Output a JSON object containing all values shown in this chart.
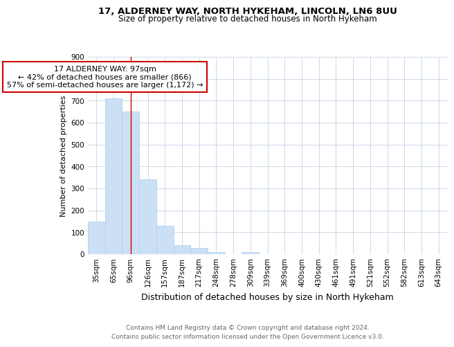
{
  "title": "17, ALDERNEY WAY, NORTH HYKEHAM, LINCOLN, LN6 8UU",
  "subtitle": "Size of property relative to detached houses in North Hykeham",
  "xlabel": "Distribution of detached houses by size in North Hykeham",
  "ylabel": "Number of detached properties",
  "categories": [
    "35sqm",
    "65sqm",
    "96sqm",
    "126sqm",
    "157sqm",
    "187sqm",
    "217sqm",
    "248sqm",
    "278sqm",
    "309sqm",
    "339sqm",
    "369sqm",
    "400sqm",
    "430sqm",
    "461sqm",
    "491sqm",
    "521sqm",
    "552sqm",
    "582sqm",
    "613sqm",
    "643sqm"
  ],
  "values": [
    150,
    710,
    650,
    340,
    130,
    42,
    28,
    10,
    0,
    8,
    0,
    0,
    0,
    0,
    0,
    0,
    0,
    0,
    0,
    0,
    0
  ],
  "bar_color": "#cce0f5",
  "bar_edge_color": "#aaccee",
  "property_line_color": "#cc0000",
  "property_line_index": 2.0,
  "annotation_text": "17 ALDERNEY WAY: 97sqm\n← 42% of detached houses are smaller (866)\n57% of semi-detached houses are larger (1,172) →",
  "annotation_box_color": "#ffffff",
  "annotation_box_edge_color": "#cc0000",
  "ylim": [
    0,
    900
  ],
  "yticks": [
    0,
    100,
    200,
    300,
    400,
    500,
    600,
    700,
    800,
    900
  ],
  "footer_line1": "Contains HM Land Registry data © Crown copyright and database right 2024.",
  "footer_line2": "Contains public sector information licensed under the Open Government Licence v3.0.",
  "bg_color": "#ffffff",
  "grid_color": "#ccd9e8",
  "title_fontsize": 9.5,
  "subtitle_fontsize": 8.5,
  "xlabel_fontsize": 9,
  "ylabel_fontsize": 8,
  "annotation_fontsize": 8,
  "tick_fontsize": 7.5,
  "footer_fontsize": 6.5
}
